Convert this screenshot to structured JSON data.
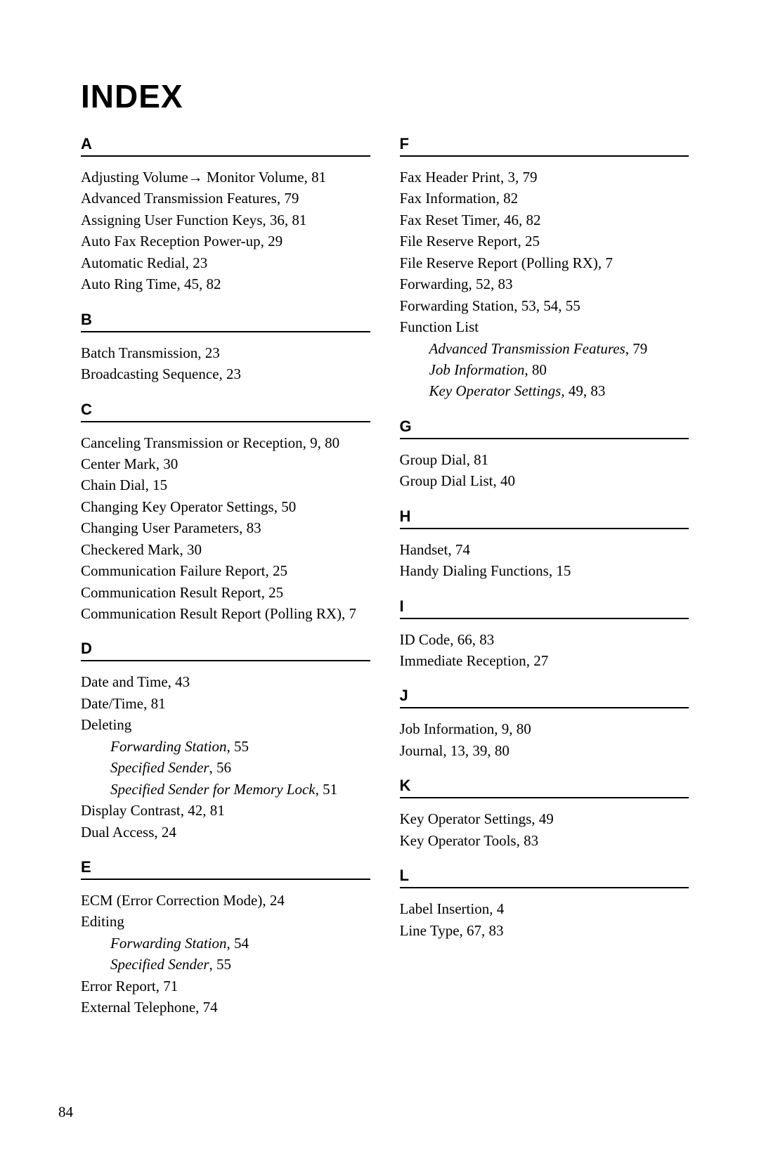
{
  "title": "INDEX",
  "pageNumber": "84",
  "columns": [
    [
      {
        "letter": "A",
        "first": true,
        "entries": [
          {
            "label": "Adjusting Volume→ Monitor Volume",
            "pages": "81"
          },
          {
            "label": "Advanced Transmission Features",
            "pages": "79"
          },
          {
            "label": "Assigning User Function Keys",
            "pages": "36, 81"
          },
          {
            "label": "Auto Fax Reception Power-up",
            "pages": "29"
          },
          {
            "label": "Automatic Redial",
            "pages": "23"
          },
          {
            "label": "Auto Ring Time",
            "pages": "45, 82"
          }
        ]
      },
      {
        "letter": "B",
        "entries": [
          {
            "label": "Batch Transmission",
            "pages": "23"
          },
          {
            "label": "Broadcasting Sequence",
            "pages": "23"
          }
        ]
      },
      {
        "letter": "C",
        "entries": [
          {
            "label": "Canceling Transmission or Reception",
            "pages": "9, 80"
          },
          {
            "label": "Center Mark",
            "pages": "30"
          },
          {
            "label": "Chain Dial",
            "pages": "15"
          },
          {
            "label": "Changing Key Operator Settings",
            "pages": "50"
          },
          {
            "label": "Changing User Parameters",
            "pages": "83"
          },
          {
            "label": "Checkered Mark",
            "pages": "30"
          },
          {
            "label": "Communication Failure Report",
            "pages": "25"
          },
          {
            "label": "Communication Result Report",
            "pages": "25"
          },
          {
            "label": "Communication Result Report (Polling RX)",
            "pages": "7",
            "hang": true
          }
        ]
      },
      {
        "letter": "D",
        "entries": [
          {
            "label": "Date and Time",
            "pages": "43"
          },
          {
            "label": "Date/Time",
            "pages": "81"
          },
          {
            "label": "Deleting",
            "sub": [
              {
                "label": "Forwarding Station",
                "pages": "55"
              },
              {
                "label": "Specified Sender",
                "pages": "56"
              },
              {
                "label": "Specified Sender for Memory Lock",
                "pages": "51"
              }
            ]
          },
          {
            "label": "Display Contrast",
            "pages": "42, 81"
          },
          {
            "label": "Dual Access",
            "pages": "24"
          }
        ]
      },
      {
        "letter": "E",
        "entries": [
          {
            "label": "ECM (Error Correction Mode)",
            "pages": "24"
          },
          {
            "label": "Editing",
            "sub": [
              {
                "label": "Forwarding Station",
                "pages": "54"
              },
              {
                "label": "Specified Sender",
                "pages": "55"
              }
            ]
          },
          {
            "label": "Error Report",
            "pages": "71"
          },
          {
            "label": "External Telephone",
            "pages": "74"
          }
        ]
      }
    ],
    [
      {
        "letter": "F",
        "first": true,
        "entries": [
          {
            "label": "Fax Header Print",
            "pages": "3, 79"
          },
          {
            "label": "Fax Information",
            "pages": "82"
          },
          {
            "label": "Fax Reset Timer",
            "pages": "46, 82"
          },
          {
            "label": "File Reserve Report",
            "pages": "25"
          },
          {
            "label": "File Reserve Report (Polling RX)",
            "pages": "7"
          },
          {
            "label": "Forwarding",
            "pages": "52, 83"
          },
          {
            "label": "Forwarding Station",
            "pages": "53, 54, 55"
          },
          {
            "label": "Function List",
            "sub": [
              {
                "label": "Advanced Transmission Features",
                "pages": "79"
              },
              {
                "label": "Job Information",
                "pages": "80"
              },
              {
                "label": "Key Operator Settings",
                "pages": "49, 83"
              }
            ]
          }
        ]
      },
      {
        "letter": "G",
        "entries": [
          {
            "label": "Group Dial",
            "pages": "81"
          },
          {
            "label": "Group Dial List",
            "pages": "40"
          }
        ]
      },
      {
        "letter": "H",
        "entries": [
          {
            "label": "Handset",
            "pages": "74"
          },
          {
            "label": "Handy Dialing Functions",
            "pages": "15"
          }
        ]
      },
      {
        "letter": "I",
        "entries": [
          {
            "label": "ID Code",
            "pages": "66, 83"
          },
          {
            "label": "Immediate Reception",
            "pages": "27"
          }
        ]
      },
      {
        "letter": "J",
        "entries": [
          {
            "label": "Job Information",
            "pages": "9, 80"
          },
          {
            "label": "Journal",
            "pages": "13, 39, 80"
          }
        ]
      },
      {
        "letter": "K",
        "entries": [
          {
            "label": "Key Operator Settings",
            "pages": "49"
          },
          {
            "label": "Key Operator Tools",
            "pages": "83"
          }
        ]
      },
      {
        "letter": "L",
        "entries": [
          {
            "label": "Label Insertion",
            "pages": "4"
          },
          {
            "label": "Line Type",
            "pages": "67, 83"
          }
        ]
      }
    ]
  ]
}
